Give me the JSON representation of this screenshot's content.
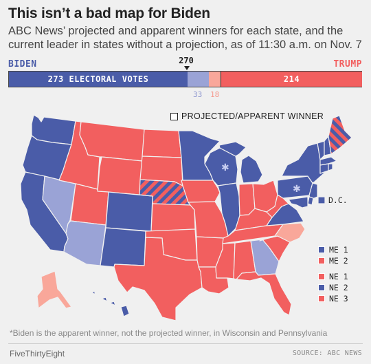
{
  "header": {
    "title": "This isn’t a bad map for Biden",
    "subtitle": "ABC News’ projected and apparent winners for each state, and the current leader in states without a projection, as of 11:30 a.m. on Nov. 7"
  },
  "colors": {
    "biden_projected": "#4a5ca8",
    "biden_leading": "#9aa3d6",
    "trump_projected": "#f25f5f",
    "trump_leading": "#f9a79a",
    "stroke": "#f0f0f0"
  },
  "chart_data": {
    "type": "bar",
    "orientation": "horizontal-stacked",
    "total_electoral_votes": 538,
    "threshold_label": "270",
    "threshold": 270,
    "left_label": "BIDEN",
    "right_label": "TRUMP",
    "segments": [
      {
        "key": "biden_projected",
        "value": 273,
        "label": "273 ELECTORAL VOTES"
      },
      {
        "key": "biden_leading",
        "value": 33,
        "label": "33"
      },
      {
        "key": "trump_leading",
        "value": 18,
        "label": "18"
      },
      {
        "key": "trump_projected",
        "value": 214,
        "label": "214"
      }
    ]
  },
  "map": {
    "legend_projected": "PROJECTED/APPARENT WINNER",
    "states": [
      {
        "id": "WA",
        "status": "biden_projected"
      },
      {
        "id": "OR",
        "status": "biden_projected"
      },
      {
        "id": "CA",
        "status": "biden_projected"
      },
      {
        "id": "NV",
        "status": "biden_leading"
      },
      {
        "id": "ID",
        "status": "trump_projected"
      },
      {
        "id": "MT",
        "status": "trump_projected"
      },
      {
        "id": "WY",
        "status": "trump_projected"
      },
      {
        "id": "UT",
        "status": "trump_projected"
      },
      {
        "id": "AZ",
        "status": "biden_leading"
      },
      {
        "id": "CO",
        "status": "biden_projected"
      },
      {
        "id": "NM",
        "status": "biden_projected"
      },
      {
        "id": "ND",
        "status": "trump_projected"
      },
      {
        "id": "SD",
        "status": "trump_projected"
      },
      {
        "id": "NE",
        "status": "split_ne"
      },
      {
        "id": "KS",
        "status": "trump_projected"
      },
      {
        "id": "OK",
        "status": "trump_projected"
      },
      {
        "id": "TX",
        "status": "trump_projected"
      },
      {
        "id": "MN",
        "status": "biden_projected"
      },
      {
        "id": "IA",
        "status": "trump_projected"
      },
      {
        "id": "MO",
        "status": "trump_projected"
      },
      {
        "id": "AR",
        "status": "trump_projected"
      },
      {
        "id": "LA",
        "status": "trump_projected"
      },
      {
        "id": "WI",
        "status": "biden_projected",
        "apparent": true
      },
      {
        "id": "IL",
        "status": "biden_projected"
      },
      {
        "id": "MI",
        "status": "biden_projected"
      },
      {
        "id": "IN",
        "status": "trump_projected"
      },
      {
        "id": "OH",
        "status": "trump_projected"
      },
      {
        "id": "KY",
        "status": "trump_projected"
      },
      {
        "id": "TN",
        "status": "trump_projected"
      },
      {
        "id": "MS",
        "status": "trump_projected"
      },
      {
        "id": "AL",
        "status": "trump_projected"
      },
      {
        "id": "GA",
        "status": "biden_leading"
      },
      {
        "id": "FL",
        "status": "trump_projected"
      },
      {
        "id": "SC",
        "status": "trump_projected"
      },
      {
        "id": "NC",
        "status": "trump_leading"
      },
      {
        "id": "VA",
        "status": "biden_projected"
      },
      {
        "id": "WV",
        "status": "trump_projected"
      },
      {
        "id": "PA",
        "status": "biden_projected",
        "apparent": true
      },
      {
        "id": "NY",
        "status": "biden_projected"
      },
      {
        "id": "VT",
        "status": "biden_projected"
      },
      {
        "id": "NH",
        "status": "biden_projected"
      },
      {
        "id": "ME",
        "status": "split_me"
      },
      {
        "id": "MA",
        "status": "biden_projected"
      },
      {
        "id": "CT",
        "status": "biden_projected"
      },
      {
        "id": "RI",
        "status": "biden_projected"
      },
      {
        "id": "NJ",
        "status": "biden_projected"
      },
      {
        "id": "DE",
        "status": "biden_projected"
      },
      {
        "id": "MD",
        "status": "biden_projected"
      },
      {
        "id": "DC",
        "status": "biden_projected",
        "label": "D.C."
      },
      {
        "id": "AK",
        "status": "trump_leading"
      },
      {
        "id": "HI",
        "status": "biden_projected"
      }
    ],
    "district_legend": [
      {
        "label": "ME 1",
        "status": "biden_projected"
      },
      {
        "label": "ME 2",
        "status": "trump_projected"
      },
      {
        "label": "NE 1",
        "status": "trump_projected"
      },
      {
        "label": "NE 2",
        "status": "biden_projected"
      },
      {
        "label": "NE 3",
        "status": "trump_projected"
      }
    ]
  },
  "footer": {
    "footnote": "*Biden is the apparent winner, not the projected winner, in Wisconsin and Pennsylvania",
    "brand": "FiveThirtyEight",
    "source": "SOURCE: ABC NEWS"
  }
}
